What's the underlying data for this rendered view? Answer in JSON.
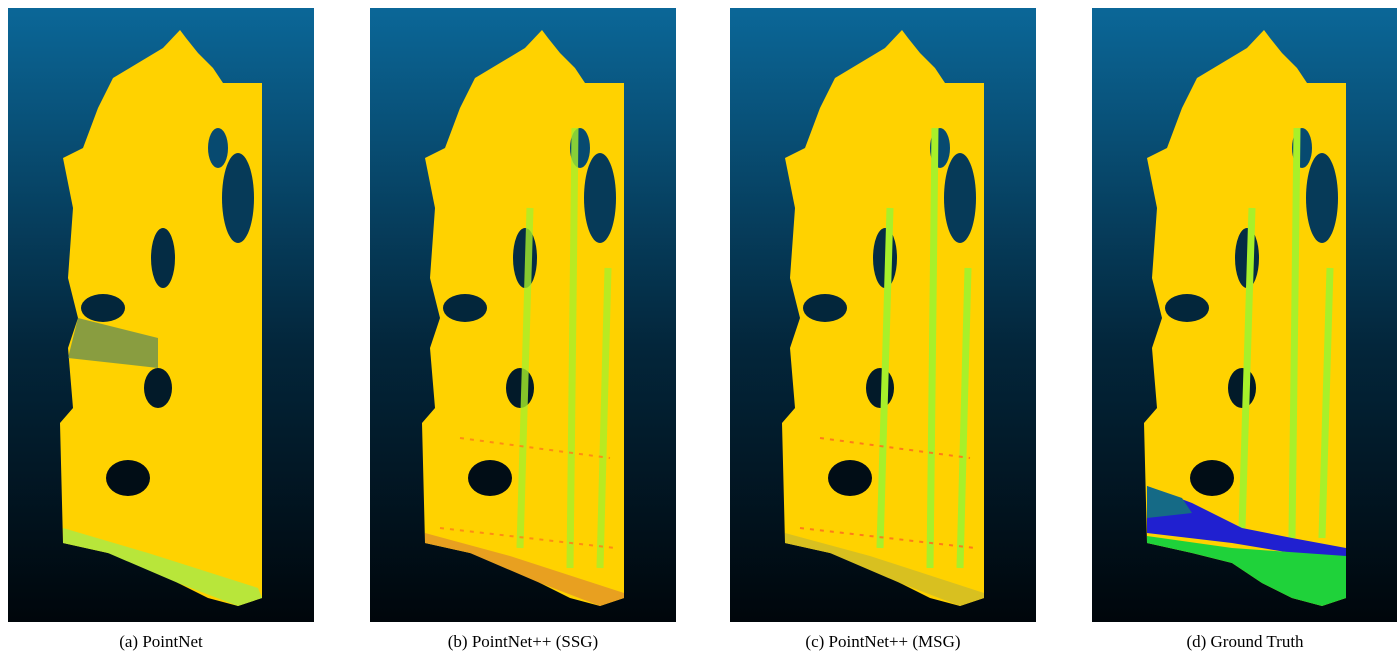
{
  "figure": {
    "panels": [
      {
        "caption": "(a) PointNet"
      },
      {
        "caption": "(b) PointNet++ (SSG)"
      },
      {
        "caption": "(c) PointNet++ (MSG)"
      },
      {
        "caption": "(d) Ground Truth"
      }
    ]
  }
}
